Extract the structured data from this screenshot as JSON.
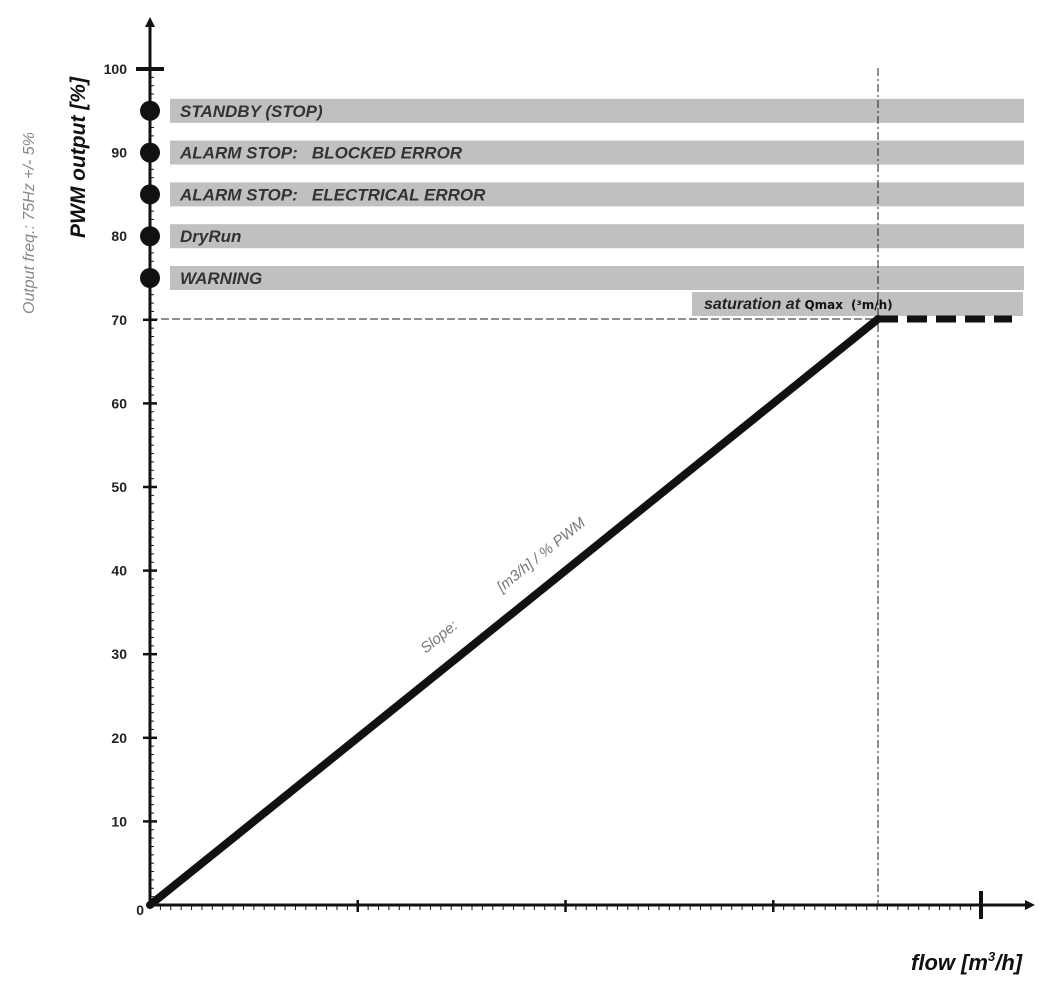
{
  "chart_data": {
    "type": "line",
    "title": "",
    "ylabel": "PWM output [%]",
    "ylabel_secondary": "Output freq.: 75Hz +/- 5%",
    "xlabel_prefix": "flow [m",
    "xlabel_sup": "3",
    "xlabel_suffix": "/h]",
    "ylim": [
      0,
      100
    ],
    "y_tick_labels": [
      "0",
      "10",
      "20",
      "30",
      "40",
      "50",
      "60",
      "70",
      "80",
      "90",
      "100"
    ],
    "x_tick_labels": [],
    "series": [
      {
        "values_y": [
          0,
          70
        ],
        "style": "solid"
      },
      {
        "values_y": [
          70,
          70
        ],
        "style": "dashed"
      }
    ],
    "status_levels": [
      {
        "label": "STANDBY (STOP)",
        "value": 95
      },
      {
        "label": "ALARM STOP:   BLOCKED ERROR",
        "value": 90
      },
      {
        "label": "ALARM STOP:   ELECTRICAL ERROR",
        "value": 85
      },
      {
        "label": "DryRun",
        "value": 80
      },
      {
        "label": "WARNING",
        "value": 75
      }
    ],
    "saturation": {
      "prefix": "saturation at ",
      "qmax": "Qmax",
      "unit": "(³m/h)",
      "value": 70
    },
    "slope_prefix": "Slope:",
    "slope_unit": "[m3/h] / % PWM",
    "grid": false,
    "legend": "none"
  },
  "colors": {
    "band_fill": "#c0c0c0",
    "line": "#111111",
    "axis": "#111111"
  }
}
